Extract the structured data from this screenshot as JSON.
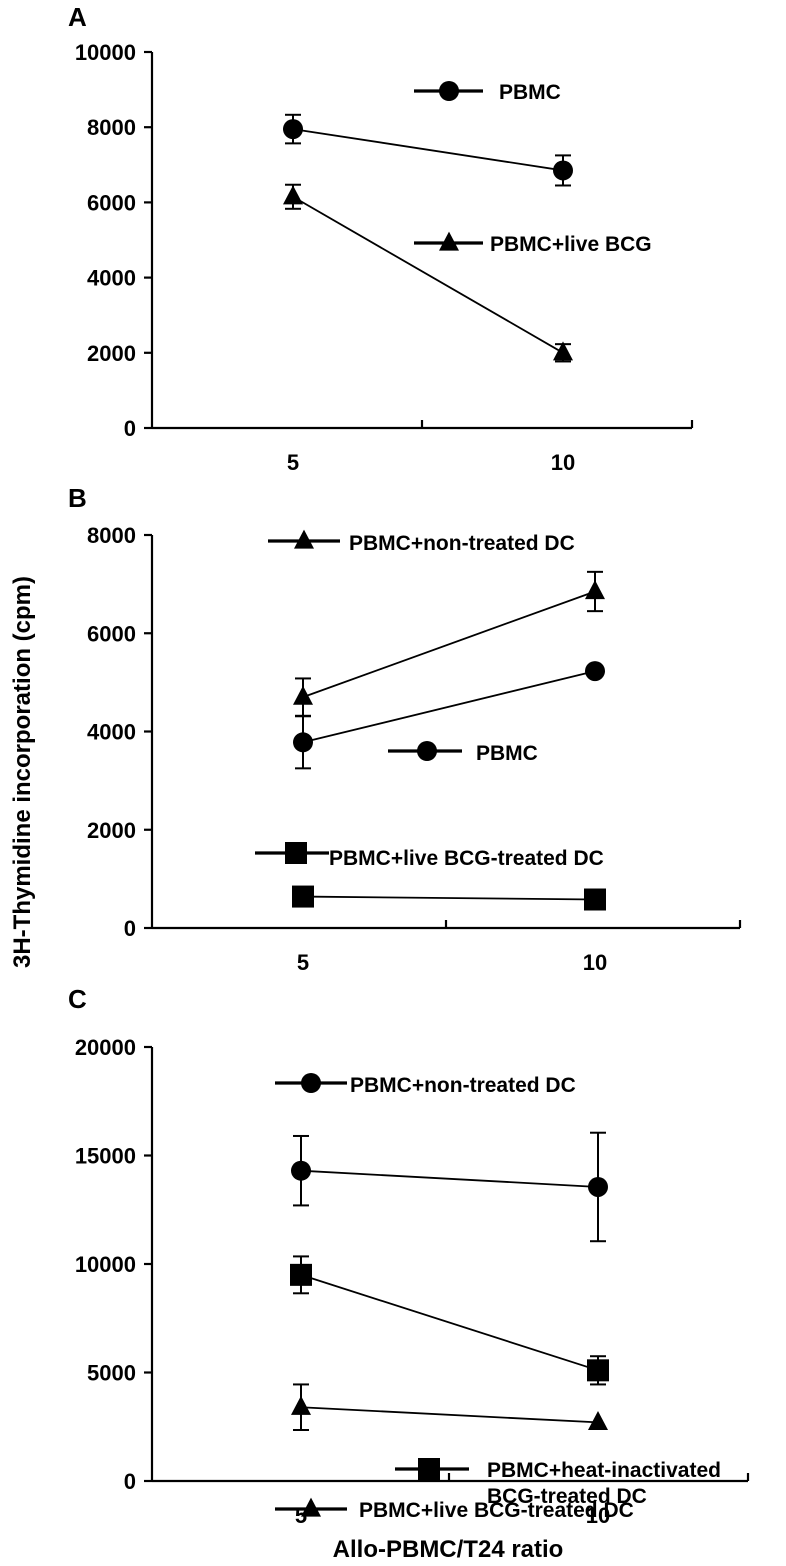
{
  "figure": {
    "ylabel": "3H-Thymidine incorporation (cpm)",
    "xlabel": "Allo-PBMC/T24 ratio"
  },
  "chart_data": [
    {
      "type": "line",
      "panel": "A",
      "categories": [
        "5",
        "10"
      ],
      "xlabel": "",
      "ylabel": "",
      "ylim": [
        0,
        10000
      ],
      "yticks": [
        "0",
        "2000",
        "4000",
        "6000",
        "8000",
        "10000"
      ],
      "series": [
        {
          "name": "PBMC",
          "marker": "circle",
          "values": [
            7950,
            6850
          ],
          "errors": [
            380,
            400
          ]
        },
        {
          "name": "PBMC+live BCG",
          "marker": "triangle",
          "values": [
            6150,
            2000
          ],
          "errors": [
            320,
            230
          ]
        }
      ]
    },
    {
      "type": "line",
      "panel": "B",
      "categories": [
        "5",
        "10"
      ],
      "xlabel": "",
      "ylabel": "",
      "ylim": [
        0,
        8000
      ],
      "yticks": [
        "0",
        "2000",
        "4000",
        "6000",
        "8000"
      ],
      "series": [
        {
          "name": "PBMC+non-treated DC",
          "marker": "triangle",
          "values": [
            4700,
            6850
          ],
          "errors": [
            380,
            400
          ]
        },
        {
          "name": "PBMC",
          "marker": "circle",
          "values": [
            3780,
            5230
          ],
          "errors": [
            530,
            0
          ]
        },
        {
          "name": "PBMC+live BCG-treated DC",
          "marker": "square",
          "values": [
            640,
            580
          ],
          "errors": [
            0,
            0
          ]
        }
      ]
    },
    {
      "type": "line",
      "panel": "C",
      "categories": [
        "5",
        "10"
      ],
      "xlabel": "",
      "ylabel": "",
      "ylim": [
        0,
        20000
      ],
      "yticks": [
        "0",
        "5000",
        "10000",
        "15000",
        "20000"
      ],
      "series": [
        {
          "name": "PBMC+non-treated DC",
          "marker": "circle",
          "values": [
            14300,
            13550
          ],
          "errors": [
            1600,
            2500
          ]
        },
        {
          "name": "PBMC+heat-inactivated\nBCG-treated DC",
          "marker": "square",
          "values": [
            9500,
            5100
          ],
          "errors": [
            850,
            650
          ]
        },
        {
          "name": "PBMC+live BCG-treated DC",
          "marker": "triangle",
          "values": [
            3400,
            2700
          ],
          "errors": [
            1050,
            0
          ]
        }
      ]
    }
  ]
}
